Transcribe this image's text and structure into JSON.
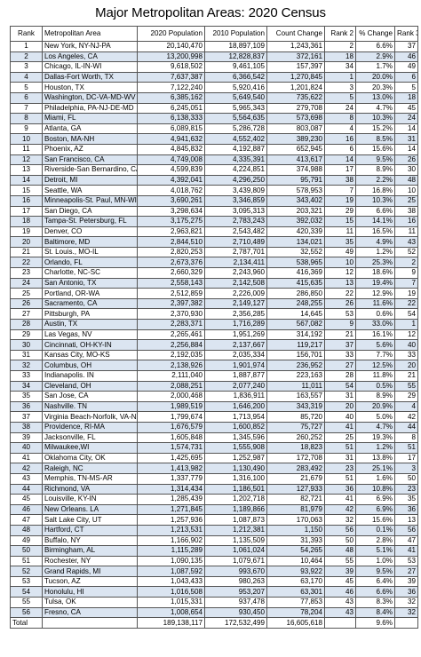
{
  "title": "Major Metropolitan Areas: 2020 Census",
  "headers": [
    "Rank",
    "Metropolitan Area",
    "2020 Population",
    "2010 Population",
    "Count Change",
    "Rank 2",
    "% Change",
    "Rank 3"
  ],
  "rows": [
    [
      "1",
      "New York, NY-NJ-PA",
      "20,140,470",
      "18,897,109",
      "1,243,361",
      "2",
      "6.6%",
      "37"
    ],
    [
      "2",
      "Los Angeles, CA",
      "13,200,998",
      "12,828,837",
      "372,161",
      "18",
      "2.9%",
      "46"
    ],
    [
      "3",
      "Chicago, IL-IN-WI",
      "9,618,502",
      "9,461,105",
      "157,397",
      "34",
      "1.7%",
      "49"
    ],
    [
      "4",
      "Dallas-Fort Worth, TX",
      "7,637,387",
      "6,366,542",
      "1,270,845",
      "1",
      "20.0%",
      "6"
    ],
    [
      "5",
      "Houston, TX",
      "7,122,240",
      "5,920,416",
      "1,201,824",
      "3",
      "20.3%",
      "5"
    ],
    [
      "6",
      "Washington, DC-VA-MD-WV",
      "6,385,162",
      "5,649,540",
      "735,622",
      "5",
      "13.0%",
      "18"
    ],
    [
      "7",
      "Philadelphia, PA-NJ-DE-MD",
      "6,245,051",
      "5,965,343",
      "279,708",
      "24",
      "4.7%",
      "45"
    ],
    [
      "8",
      "Miami, FL",
      "6,138,333",
      "5,564,635",
      "573,698",
      "8",
      "10.3%",
      "24"
    ],
    [
      "9",
      "Atlanta, GA",
      "6,089,815",
      "5,286,728",
      "803,087",
      "4",
      "15.2%",
      "14"
    ],
    [
      "10",
      "Boston, MA-NH",
      "4,941,632",
      "4,552,402",
      "389,230",
      "16",
      "8.5%",
      "31"
    ],
    [
      "11",
      "Phoenix, AZ",
      "4,845,832",
      "4,192,887",
      "652,945",
      "6",
      "15.6%",
      "14"
    ],
    [
      "12",
      "San Francisco, CA",
      "4,749,008",
      "4,335,391",
      "413,617",
      "14",
      "9.5%",
      "26"
    ],
    [
      "13",
      "Riverside-San Bernardino, CA",
      "4,599,839",
      "4,224,851",
      "374,988",
      "17",
      "8.9%",
      "30"
    ],
    [
      "14",
      "Detroit,  MI",
      "4,392,041",
      "4,296,250",
      "95,791",
      "38",
      "2.2%",
      "48"
    ],
    [
      "15",
      "Seattle, WA",
      "4,018,762",
      "3,439,809",
      "578,953",
      "7",
      "16.8%",
      "10"
    ],
    [
      "16",
      "Minneapolis-St. Paul, MN-WI",
      "3,690,261",
      "3,346,859",
      "343,402",
      "19",
      "10.3%",
      "25"
    ],
    [
      "17",
      "San Diego, CA",
      "3,298,634",
      "3,095,313",
      "203,321",
      "29",
      "6.6%",
      "38"
    ],
    [
      "18",
      "Tampa-St. Petersburg, FL",
      "3,175,275",
      "2,783,243",
      "392,032",
      "15",
      "14.1%",
      "16"
    ],
    [
      "19",
      "Denver, CO",
      "2,963,821",
      "2,543,482",
      "420,339",
      "11",
      "16.5%",
      "11"
    ],
    [
      "20",
      "Baltimore, MD",
      "2,844,510",
      "2,710,489",
      "134,021",
      "35",
      "4.9%",
      "43"
    ],
    [
      "21",
      "St. Louis., MO-IL",
      "2,820,253",
      "2,787,701",
      "32,552",
      "49",
      "1.2%",
      "52"
    ],
    [
      "22",
      "Orlando, FL",
      "2,673,376",
      "2,134,411",
      "538,965",
      "10",
      "25.3%",
      "2"
    ],
    [
      "23",
      "Charlotte, NC-SC",
      "2,660,329",
      "2,243,960",
      "416,369",
      "12",
      "18.6%",
      "9"
    ],
    [
      "24",
      "San Antonio, TX",
      "2,558,143",
      "2,142,508",
      "415,635",
      "13",
      "19.4%",
      "7"
    ],
    [
      "25",
      "Portland, OR-WA",
      "2,512,859",
      "2,226,009",
      "286,850",
      "22",
      "12.9%",
      "19"
    ],
    [
      "26",
      "Sacramento, CA",
      "2,397,382",
      "2,149,127",
      "248,255",
      "26",
      "11.6%",
      "22"
    ],
    [
      "27",
      "Pittsburgh, PA",
      "2,370,930",
      "2,356,285",
      "14,645",
      "53",
      "0.6%",
      "54"
    ],
    [
      "28",
      "Austin, TX",
      "2,283,371",
      "1,716,289",
      "567,082",
      "9",
      "33.0%",
      "1"
    ],
    [
      "29",
      "Las Vegas, NV",
      "2,265,461",
      "1,951,269",
      "314,192",
      "21",
      "16.1%",
      "12"
    ],
    [
      "30",
      "Cincinnati, OH-KY-IN",
      "2,256,884",
      "2,137,667",
      "119,217",
      "37",
      "5.6%",
      "40"
    ],
    [
      "31",
      "Kansas City, MO-KS",
      "2,192,035",
      "2,035,334",
      "156,701",
      "33",
      "7.7%",
      "33"
    ],
    [
      "32",
      "Columbus, OH",
      "2,138,926",
      "1,901,974",
      "236,952",
      "27",
      "12.5%",
      "20"
    ],
    [
      "33",
      "Indianapolis. IN",
      "2,111,040",
      "1,887,877",
      "223,163",
      "28",
      "11.8%",
      "21"
    ],
    [
      "34",
      "Cleveland, OH",
      "2,088,251",
      "2,077,240",
      "11,011",
      "54",
      "0.5%",
      "55"
    ],
    [
      "35",
      "San Jose, CA",
      "2,000,468",
      "1,836,911",
      "163,557",
      "31",
      "8.9%",
      "29"
    ],
    [
      "36",
      "Nashville. TN",
      "1,989,519",
      "1,646,200",
      "343,319",
      "20",
      "20.9%",
      "4"
    ],
    [
      "37",
      "Virginia Beach-Norfolk, VA-NC",
      "1,799,674",
      "1,713,954",
      "85,720",
      "40",
      "5.0%",
      "42"
    ],
    [
      "38",
      "Providence, RI-MA",
      "1,676,579",
      "1,600,852",
      "75,727",
      "41",
      "4.7%",
      "44"
    ],
    [
      "39",
      "Jacksonville, FL",
      "1,605,848",
      "1,345,596",
      "260,252",
      "25",
      "19.3%",
      "8"
    ],
    [
      "40",
      "Milwaukee,WI",
      "1,574,731",
      "1,555,908",
      "18,823",
      "51",
      "1.2%",
      "51"
    ],
    [
      "41",
      "Oklahoma City, OK",
      "1,425,695",
      "1,252,987",
      "172,708",
      "31",
      "13.8%",
      "17"
    ],
    [
      "42",
      "Raleigh, NC",
      "1,413,982",
      "1,130,490",
      "283,492",
      "23",
      "25.1%",
      "3"
    ],
    [
      "43",
      "Memphis, TN-MS-AR",
      "1,337,779",
      "1,316,100",
      "21,679",
      "51",
      "1.6%",
      "50"
    ],
    [
      "44",
      "Richmond, VA",
      "1,314,434",
      "1,186,501",
      "127,933",
      "36",
      "10.8%",
      "23"
    ],
    [
      "45",
      "Louisville, KY-IN",
      "1,285,439",
      "1,202,718",
      "82,721",
      "41",
      "6.9%",
      "35"
    ],
    [
      "46",
      "New Orleans. LA",
      "1,271,845",
      "1,189,866",
      "81,979",
      "42",
      "6.9%",
      "36"
    ],
    [
      "47",
      "Salt Lake City, UT",
      "1,257,936",
      "1,087,873",
      "170,063",
      "32",
      "15.6%",
      "13"
    ],
    [
      "48",
      "Hartford, CT",
      "1,213,531",
      "1,212,381",
      "1,150",
      "56",
      "0.1%",
      "56"
    ],
    [
      "49",
      "Buffalo, NY",
      "1,166,902",
      "1,135,509",
      "31,393",
      "50",
      "2.8%",
      "47"
    ],
    [
      "50",
      "Birmingham, AL",
      "1,115,289",
      "1,061,024",
      "54,265",
      "48",
      "5.1%",
      "41"
    ],
    [
      "51",
      "Rochester, NY",
      "1,090,135",
      "1,079,671",
      "10,464",
      "55",
      "1.0%",
      "53"
    ],
    [
      "52",
      "Grand Rapids, MI",
      "1,087,592",
      "993,670",
      "93,922",
      "39",
      "9.5%",
      "27"
    ],
    [
      "53",
      "Tucson, AZ",
      "1,043,433",
      "980,263",
      "63,170",
      "45",
      "6.4%",
      "39"
    ],
    [
      "54",
      "Honolulu, HI",
      "1,016,508",
      "953,207",
      "63,301",
      "46",
      "6.6%",
      "36"
    ],
    [
      "55",
      "Tulsa, OK",
      "1,015,331",
      "937,478",
      "77,853",
      "43",
      "8.3%",
      "32"
    ],
    [
      "56",
      "Fresno, CA",
      "1,008,654",
      "930,450",
      "78,204",
      "43",
      "8.4%",
      "32"
    ]
  ],
  "total": [
    "Total",
    "",
    "189,138,117",
    "172,532,499",
    "16,605,618",
    "",
    "9.6%",
    ""
  ]
}
